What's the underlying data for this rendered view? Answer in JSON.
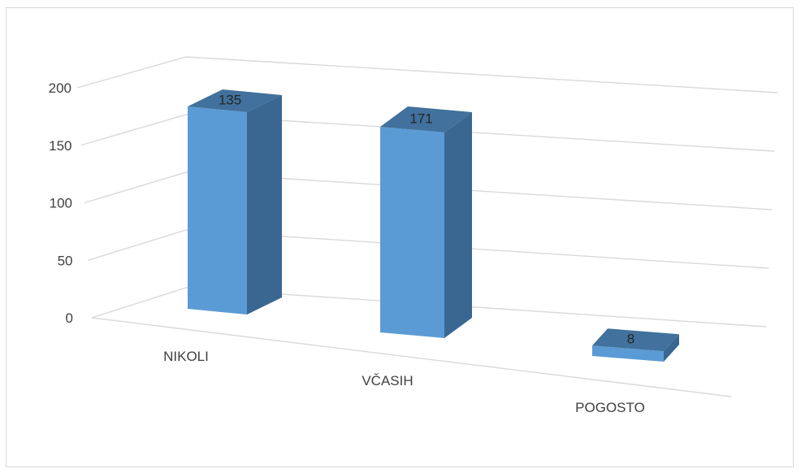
{
  "chart_data": {
    "type": "bar",
    "style": "3d-column",
    "categories": [
      "NIKOLI",
      "VČASIH",
      "POGOSTO"
    ],
    "values": [
      135,
      171,
      8
    ],
    "data_labels": [
      "135",
      "171",
      "8"
    ],
    "title": "",
    "xlabel": "",
    "ylabel": "",
    "ylim": [
      0,
      200
    ],
    "yticks": [
      "0",
      "50",
      "100",
      "150",
      "200"
    ],
    "grid": true,
    "legend": "none",
    "colors": {
      "bar_front": "#5b9bd5",
      "bar_side": "#3a6791",
      "bar_top": "#41719c",
      "gridline": "#d9d9d9",
      "text": "#404040"
    }
  }
}
